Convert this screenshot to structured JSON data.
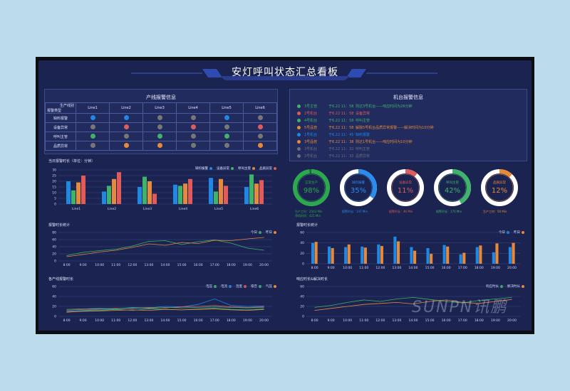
{
  "title": "安灯呼叫状态汇总看板",
  "line_alarm": {
    "title": "产线报警信息",
    "corner_top": "生产线别",
    "corner_bottom": "报警类型",
    "lines": [
      "Line1",
      "Line2",
      "Line3",
      "Line4",
      "Line5",
      "Line6"
    ],
    "rows": [
      {
        "label": "缺料报警",
        "dots": [
          "#1e88e5",
          "#1e88e5",
          "#777777",
          "#777777",
          "#1e88e5",
          "#777777"
        ]
      },
      {
        "label": "设备异常",
        "dots": [
          "#777777",
          "#e05b5b",
          "#777777",
          "#e05b5b",
          "#777777",
          "#e05b5b"
        ]
      },
      {
        "label": "呼叫主管",
        "dots": [
          "#3fb36b",
          "#777777",
          "#3fb36b",
          "#777777",
          "#3fb36b",
          "#777777"
        ]
      },
      {
        "label": "品质异常",
        "dots": [
          "#777777",
          "#e8893a",
          "#e8893a",
          "#777777",
          "#777777",
          "#e8893a"
        ]
      }
    ]
  },
  "machine_alarm": {
    "title": "机台报警信息",
    "items": [
      {
        "machine": "3号主管",
        "time": "于6.22 11：58",
        "msg": "则达3号机台——响应时间为26分钟",
        "color": "#3fb36b"
      },
      {
        "machine": "2号机台",
        "time": "于6.22 11：58",
        "msg": "设备异常",
        "color": "#e05b5b"
      },
      {
        "machine": "4号机台",
        "time": "于6.22 11：58",
        "msg": "呼叫主管",
        "color": "#3fb36b"
      },
      {
        "machine": "5号品管",
        "time": "于6.22 11：58",
        "msg": "解除5号机台品质异常报警——解决时间为10分钟",
        "color": "#e8893a"
      },
      {
        "machine": "1号机台",
        "time": "于6.22 11：45",
        "msg": "缺料报警",
        "color": "#1e88e5"
      },
      {
        "machine": "3号品管",
        "time": "于6.22 11：38",
        "msg": "则达1号机台——响应时间为10分钟",
        "color": "#e8893a"
      },
      {
        "machine": "3号机台",
        "time": "于6.22 11：32",
        "msg": "呼叫主管",
        "color": "#6a6f80"
      },
      {
        "machine": "2号机台",
        "time": "于6.22 11：32",
        "msg": "品质异常",
        "color": "#6a6f80"
      }
    ]
  },
  "rings": [
    {
      "name": "正常生产",
      "pct": "98%",
      "value": 0.98,
      "color": "#2ea84f",
      "track": "#1f6b36",
      "sub1": "生产工时：2563 Min",
      "sub2": "停机时间：425 Min"
    },
    {
      "name": "缺料报警",
      "pct": "35%",
      "value": 0.35,
      "color": "#2b8cf0",
      "track": "#ffffff",
      "sub1": "报警时长：147 Min",
      "sub2": ""
    },
    {
      "name": "设备异常",
      "pct": "11%",
      "value": 0.11,
      "color": "#e05b5b",
      "track": "#ffffff",
      "sub1": "报警时长：46 Min",
      "sub2": ""
    },
    {
      "name": "呼叫主管",
      "pct": "42%",
      "value": 0.42,
      "color": "#3fb36b",
      "track": "#ffffff",
      "sub1": "报警时长：176 Min",
      "sub2": ""
    },
    {
      "name": "品质异常",
      "pct": "12%",
      "value": 0.12,
      "color": "#e8893a",
      "track": "#ffffff",
      "sub1": "生产工时：50 Min",
      "sub2": ""
    }
  ],
  "chart_data": [
    {
      "type": "bar",
      "title": "当日报警时长（单位：分钟）",
      "categories": [
        "Line1",
        "Line2",
        "Line3",
        "Line4",
        "Line5",
        "Line6"
      ],
      "ylim": [
        0,
        30
      ],
      "yticks": [
        "0",
        "5",
        "10",
        "15",
        "20",
        "25",
        "30"
      ],
      "series": [
        {
          "name": "缺料报警",
          "color": "#1e88e5",
          "values": [
            20,
            11,
            15,
            17,
            23,
            15
          ]
        },
        {
          "name": "设备异常",
          "color": "#3fb36b",
          "values": [
            12,
            16,
            24,
            16,
            11,
            26
          ]
        },
        {
          "name": "呼叫主管",
          "color": "#e8893a",
          "values": [
            19,
            22,
            20,
            18,
            22,
            18
          ]
        },
        {
          "name": "品质异常",
          "color": "#e05b5b",
          "values": [
            25,
            28,
            9,
            22,
            16,
            21
          ]
        }
      ]
    },
    {
      "type": "line",
      "title": "报警时长统计",
      "x": [
        "8:00",
        "9:00",
        "10:00",
        "11:00",
        "12:00",
        "13:00",
        "14:00",
        "15:00",
        "16:00",
        "17:00",
        "18:00",
        "19:00",
        "20:00"
      ],
      "ylim": [
        0,
        80
      ],
      "yticks": [
        "0",
        "20",
        "40",
        "60",
        "80"
      ],
      "series": [
        {
          "name": "今日",
          "color": "#3fb36b",
          "values": [
            15,
            24,
            29,
            33,
            42,
            55,
            57,
            46,
            54,
            59,
            50,
            36,
            30
          ]
        },
        {
          "name": "昨日",
          "color": "#e8893a",
          "values": [
            12,
            18,
            25,
            30,
            38,
            48,
            44,
            52,
            49,
            58,
            57,
            62,
            66
          ]
        }
      ]
    },
    {
      "type": "line",
      "title": "各产线报警时长",
      "x": [
        "8:00",
        "9:00",
        "10:00",
        "11:00",
        "12:00",
        "13:00",
        "14:00",
        "15:00",
        "16:00",
        "17:00",
        "18:00",
        "19:00",
        "20:00"
      ],
      "ylim": [
        0,
        60
      ],
      "yticks": [
        "0",
        "20",
        "40",
        "60"
      ],
      "series": [
        {
          "name": "电压",
          "color": "#3fb36b",
          "values": [
            8,
            11,
            12,
            14,
            12,
            15,
            14,
            13,
            15,
            16,
            14,
            13,
            15
          ]
        },
        {
          "name": "电流",
          "color": "#1e88e5",
          "values": [
            10,
            12,
            14,
            15,
            18,
            17,
            20,
            19,
            24,
            35,
            22,
            20,
            21
          ]
        },
        {
          "name": "温度",
          "color": "#e05b5b",
          "values": [
            12,
            14,
            15,
            16,
            16,
            18,
            17,
            19,
            20,
            22,
            19,
            18,
            19
          ]
        },
        {
          "name": "噪音",
          "color": "#3fb36b",
          "values": [
            14,
            15,
            16,
            15,
            17,
            16,
            18,
            17,
            18,
            19,
            18,
            17,
            18
          ]
        },
        {
          "name": "气压",
          "color": "#e8893a",
          "values": [
            9,
            10,
            11,
            12,
            13,
            12,
            14,
            13,
            14,
            15,
            13,
            12,
            14
          ]
        }
      ]
    },
    {
      "type": "bar",
      "title": "报警时长统计",
      "x": [
        "8:00",
        "9:00",
        "10:00",
        "11:00",
        "12:00",
        "13:00",
        "14:00",
        "15:00",
        "16:00",
        "17:00",
        "18:00",
        "19:00",
        "20:00"
      ],
      "ylim": [
        0,
        60
      ],
      "yticks": [
        "0",
        "20",
        "40",
        "60"
      ],
      "series": [
        {
          "name": "今日",
          "color": "#1e88e5",
          "values": [
            40,
            33,
            32,
            33,
            37,
            52,
            32,
            30,
            36,
            18,
            32,
            22,
            32
          ]
        },
        {
          "name": "昨日",
          "color": "#e8893a",
          "values": [
            42,
            30,
            37,
            31,
            34,
            43,
            25,
            19,
            33,
            21,
            35,
            39,
            40
          ]
        }
      ]
    },
    {
      "type": "line",
      "title": "响应时长&解决时长",
      "x": [
        "8:00",
        "9:00",
        "10:00",
        "11:00",
        "12:00",
        "13:00",
        "14:00",
        "15:00",
        "16:00",
        "17:00",
        "18:00",
        "19:00",
        "20:00"
      ],
      "ylim": [
        0,
        60
      ],
      "yticks": [
        "0",
        "20",
        "40",
        "60"
      ],
      "series": [
        {
          "name": "响应时长",
          "color": "#3fb36b",
          "values": [
            18,
            22,
            28,
            33,
            30,
            35,
            38,
            34,
            30,
            27,
            32,
            35,
            38
          ]
        },
        {
          "name": "解决时长",
          "color": "#e8893a",
          "values": [
            12,
            16,
            20,
            24,
            26,
            28,
            25,
            30,
            33,
            28,
            26,
            30,
            34
          ]
        }
      ]
    }
  ],
  "watermark": "SUNPN讯鹏"
}
